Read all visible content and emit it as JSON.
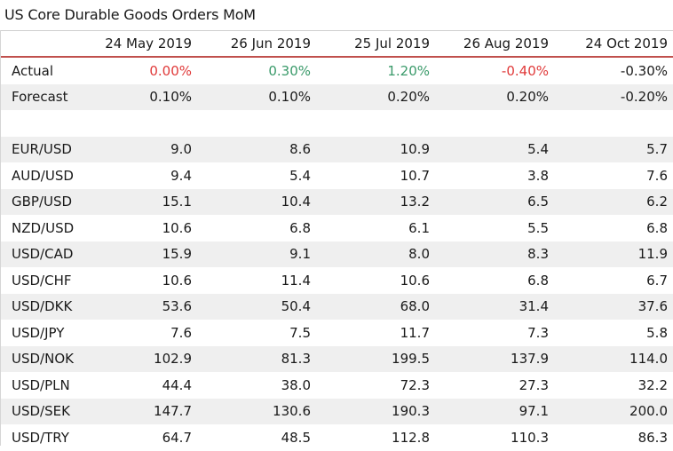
{
  "title": "US Core Durable Goods Orders MoM",
  "chart_data": {
    "type": "table",
    "title": "US Core Durable Goods Orders MoM",
    "columns": [
      "24 May 2019",
      "26 Jun 2019",
      "25 Jul 2019",
      "26 Aug 2019",
      "24 Oct 2019"
    ],
    "summary_rows": [
      {
        "label": "Actual",
        "values": [
          "0.00%",
          "0.30%",
          "1.20%",
          "-0.40%",
          "-0.30%"
        ],
        "colors": [
          "#e03a3a",
          "#3a9a6a",
          "#3a9a6a",
          "#e03a3a",
          "#1a1a1a"
        ]
      },
      {
        "label": "Forecast",
        "values": [
          "0.10%",
          "0.10%",
          "0.20%",
          "0.20%",
          "-0.20%"
        ],
        "colors": [
          "#1a1a1a",
          "#1a1a1a",
          "#1a1a1a",
          "#1a1a1a",
          "#1a1a1a"
        ]
      }
    ],
    "pair_rows": [
      {
        "label": "EUR/USD",
        "values": [
          "9.0",
          "8.6",
          "10.9",
          "5.4",
          "5.7"
        ]
      },
      {
        "label": "AUD/USD",
        "values": [
          "9.4",
          "5.4",
          "10.7",
          "3.8",
          "7.6"
        ]
      },
      {
        "label": "GBP/USD",
        "values": [
          "15.1",
          "10.4",
          "13.2",
          "6.5",
          "6.2"
        ]
      },
      {
        "label": "NZD/USD",
        "values": [
          "10.6",
          "6.8",
          "6.1",
          "5.5",
          "6.8"
        ]
      },
      {
        "label": "USD/CAD",
        "values": [
          "15.9",
          "9.1",
          "8.0",
          "8.3",
          "11.9"
        ]
      },
      {
        "label": "USD/CHF",
        "values": [
          "10.6",
          "11.4",
          "10.6",
          "6.8",
          "6.7"
        ]
      },
      {
        "label": "USD/DKK",
        "values": [
          "53.6",
          "50.4",
          "68.0",
          "31.4",
          "37.6"
        ]
      },
      {
        "label": "USD/JPY",
        "values": [
          "7.6",
          "7.5",
          "11.7",
          "7.3",
          "5.8"
        ]
      },
      {
        "label": "USD/NOK",
        "values": [
          "102.9",
          "81.3",
          "199.5",
          "137.9",
          "114.0"
        ]
      },
      {
        "label": "USD/PLN",
        "values": [
          "44.4",
          "38.0",
          "72.3",
          "27.3",
          "32.2"
        ]
      },
      {
        "label": "USD/SEK",
        "values": [
          "147.7",
          "130.6",
          "190.3",
          "97.1",
          "200.0"
        ]
      },
      {
        "label": "USD/TRY",
        "values": [
          "64.7",
          "48.5",
          "112.8",
          "110.3",
          "86.3"
        ]
      }
    ],
    "header_rule_color": "#c0504d",
    "stripe_color": "#efefef"
  }
}
